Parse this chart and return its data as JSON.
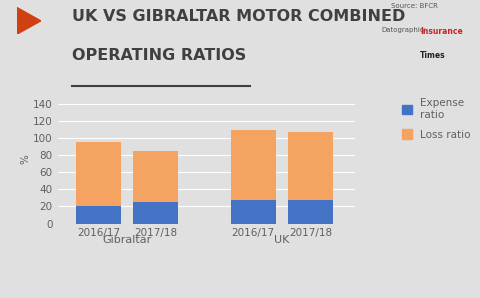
{
  "title_line1": "UK VS GIBRALTAR MOTOR COMBINED",
  "title_line2": "OPERATING RATIOS",
  "ylabel": "%",
  "ylim": [
    0,
    150
  ],
  "yticks": [
    0,
    20,
    40,
    60,
    80,
    100,
    120,
    140
  ],
  "categories": [
    "2016/17",
    "2017/18",
    "2016/17",
    "2017/18"
  ],
  "group_labels": [
    "Gibraltar",
    "UK"
  ],
  "group_centers": [
    1.05,
    2.95
  ],
  "group_lefts": [
    0.425,
    2.325
  ],
  "group_rights": [
    1.675,
    3.575
  ],
  "positions": [
    0.7,
    1.4,
    2.6,
    3.3
  ],
  "expense_ratios": [
    21,
    25,
    27,
    28
  ],
  "loss_ratios": [
    74,
    60,
    83,
    79
  ],
  "expense_color": "#4472C4",
  "loss_color": "#F4A460",
  "bg_color": "#E0E0E0",
  "bar_width": 0.55,
  "legend_expense": "Expense\nratio",
  "legend_loss": "Loss ratio",
  "title_color": "#404040",
  "tick_color": "#606060",
  "group_label_fontsize": 8,
  "title_fontsize": 11.5,
  "tick_fontsize": 7.5,
  "legend_fontsize": 7.5,
  "xlim": [
    0.2,
    3.85
  ]
}
